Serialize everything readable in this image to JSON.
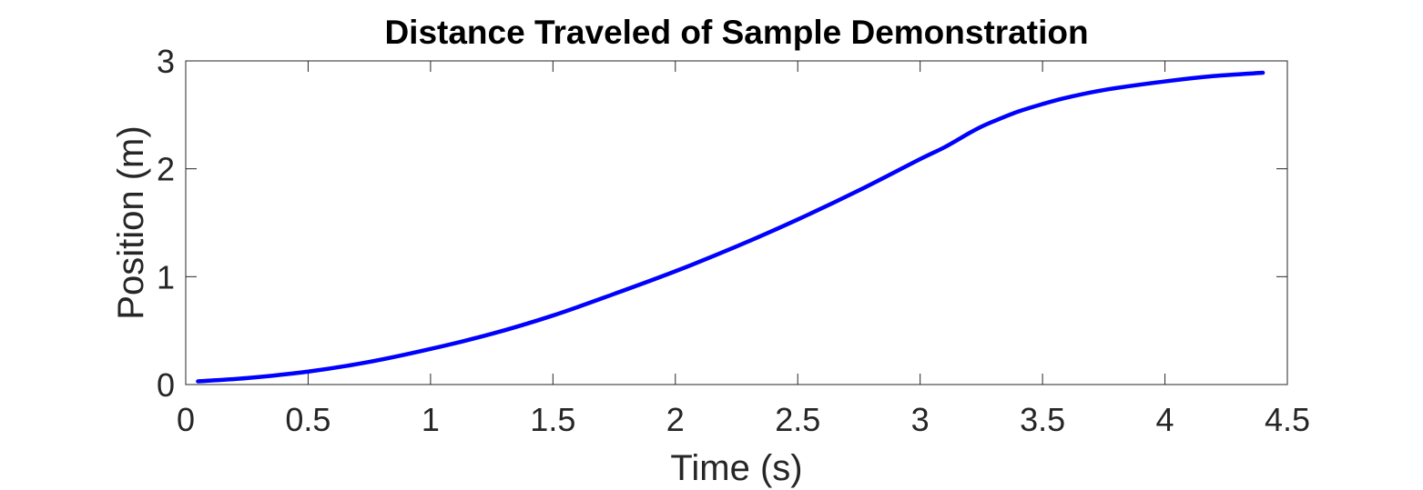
{
  "chart_data": {
    "type": "line",
    "title": "Distance Traveled of Sample Demonstration",
    "xlabel": "Time (s)",
    "ylabel": "Position (m)",
    "xlim": [
      0,
      4.5
    ],
    "ylim": [
      0,
      3
    ],
    "x_ticks": [
      0,
      0.5,
      1,
      1.5,
      2,
      2.5,
      3,
      3.5,
      4,
      4.5
    ],
    "x_tick_labels": [
      "0",
      "0.5",
      "1",
      "1.5",
      "2",
      "2.5",
      "3",
      "3.5",
      "4",
      "4.5"
    ],
    "y_ticks": [
      0,
      1,
      2,
      3
    ],
    "y_tick_labels": [
      "0",
      "1",
      "2",
      "3"
    ],
    "grid": false,
    "box": true,
    "series": [
      {
        "color": "#0000ff",
        "x": [
          0.05,
          0.25,
          0.5,
          0.75,
          1.0,
          1.25,
          1.5,
          1.75,
          2.0,
          2.25,
          2.5,
          2.75,
          3.0,
          3.1,
          3.2,
          3.25,
          3.3,
          3.4,
          3.5,
          3.6,
          3.75,
          4.0,
          4.2,
          4.4
        ],
        "y": [
          0.03,
          0.06,
          0.12,
          0.21,
          0.33,
          0.47,
          0.64,
          0.84,
          1.05,
          1.28,
          1.53,
          1.8,
          2.09,
          2.2,
          2.33,
          2.39,
          2.44,
          2.53,
          2.6,
          2.66,
          2.73,
          2.81,
          2.86,
          2.89
        ]
      }
    ]
  }
}
